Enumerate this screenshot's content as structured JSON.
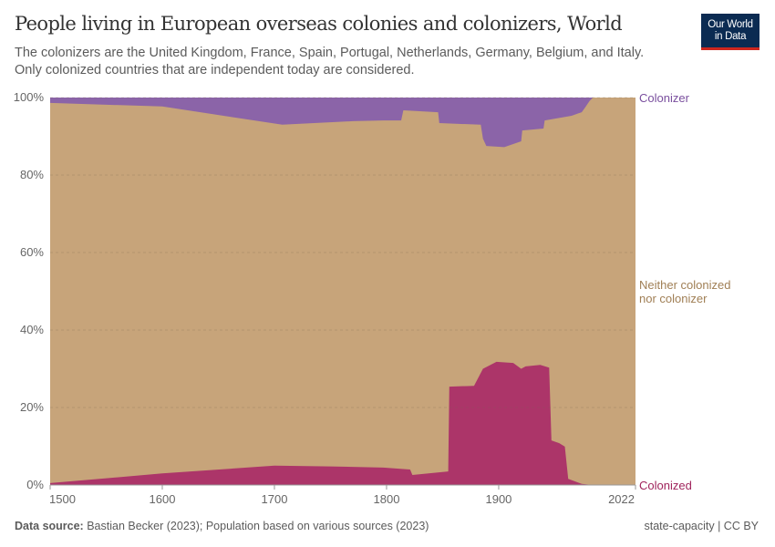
{
  "header": {
    "title": "People living in European overseas colonies and colonizers, World",
    "subtitle_line1": "The colonizers are the United Kingdom, France, Spain, Portugal, Netherlands, Germany, Belgium, and Italy.",
    "subtitle_line2": "Only colonized countries that are independent today are considered.",
    "logo_line1": "Our World",
    "logo_line2": "in Data"
  },
  "footer": {
    "source_label": "Data source:",
    "source_text": "Bastian Becker (2023); Population based on various sources (2023)",
    "license": "state-capacity | CC BY"
  },
  "chart_data": {
    "type": "area",
    "stacked": "100%",
    "title": "People living in European overseas colonies and colonizers, World",
    "xlim": [
      1500,
      2022
    ],
    "ylim": [
      0,
      100
    ],
    "x_ticks": [
      "1500",
      "1600",
      "1700",
      "1800",
      "1900",
      "2022"
    ],
    "y_ticks": [
      "0%",
      "20%",
      "40%",
      "60%",
      "80%",
      "100%"
    ],
    "grid": "horizontal dashed",
    "legend": "labels at right end of series",
    "series": [
      {
        "name": "Colonized",
        "color": "#ac3569",
        "stack_position": "bottom",
        "x": [
          1500,
          1600,
          1700,
          1750,
          1797,
          1821,
          1823,
          1855,
          1856,
          1878,
          1886,
          1898,
          1913,
          1920,
          1924,
          1937,
          1945,
          1947,
          1954,
          1959,
          1962,
          1974,
          1981,
          2022
        ],
        "values": [
          0.5,
          3,
          5,
          4.8,
          4.5,
          4,
          2.6,
          3.5,
          25.4,
          25.6,
          30,
          31.8,
          31.5,
          30,
          30.6,
          31,
          30.3,
          11.5,
          10.8,
          9.9,
          1.6,
          0.3,
          0.1,
          0
        ]
      },
      {
        "name": "Neither colonized nor colonizer",
        "label_lines": [
          "Neither colonized",
          "nor colonizer"
        ],
        "color": "#c7a47a",
        "stack_position": "middle"
      },
      {
        "name": "Colonizer",
        "color": "#8b64a8",
        "stack_position": "top",
        "x": [
          1500,
          1600,
          1707,
          1770,
          1797,
          1813,
          1815,
          1846,
          1847,
          1884,
          1886,
          1889,
          1905,
          1920,
          1921,
          1940,
          1941,
          1965,
          1974,
          1977,
          1981,
          1984,
          2022
        ],
        "values": [
          1.4,
          2.3,
          7,
          6.1,
          5.9,
          5.9,
          3.3,
          3.8,
          6.6,
          7,
          10.6,
          12.5,
          12.8,
          11.3,
          8.5,
          8,
          5.9,
          4.7,
          3.8,
          2.6,
          0.9,
          0,
          0
        ]
      }
    ]
  }
}
